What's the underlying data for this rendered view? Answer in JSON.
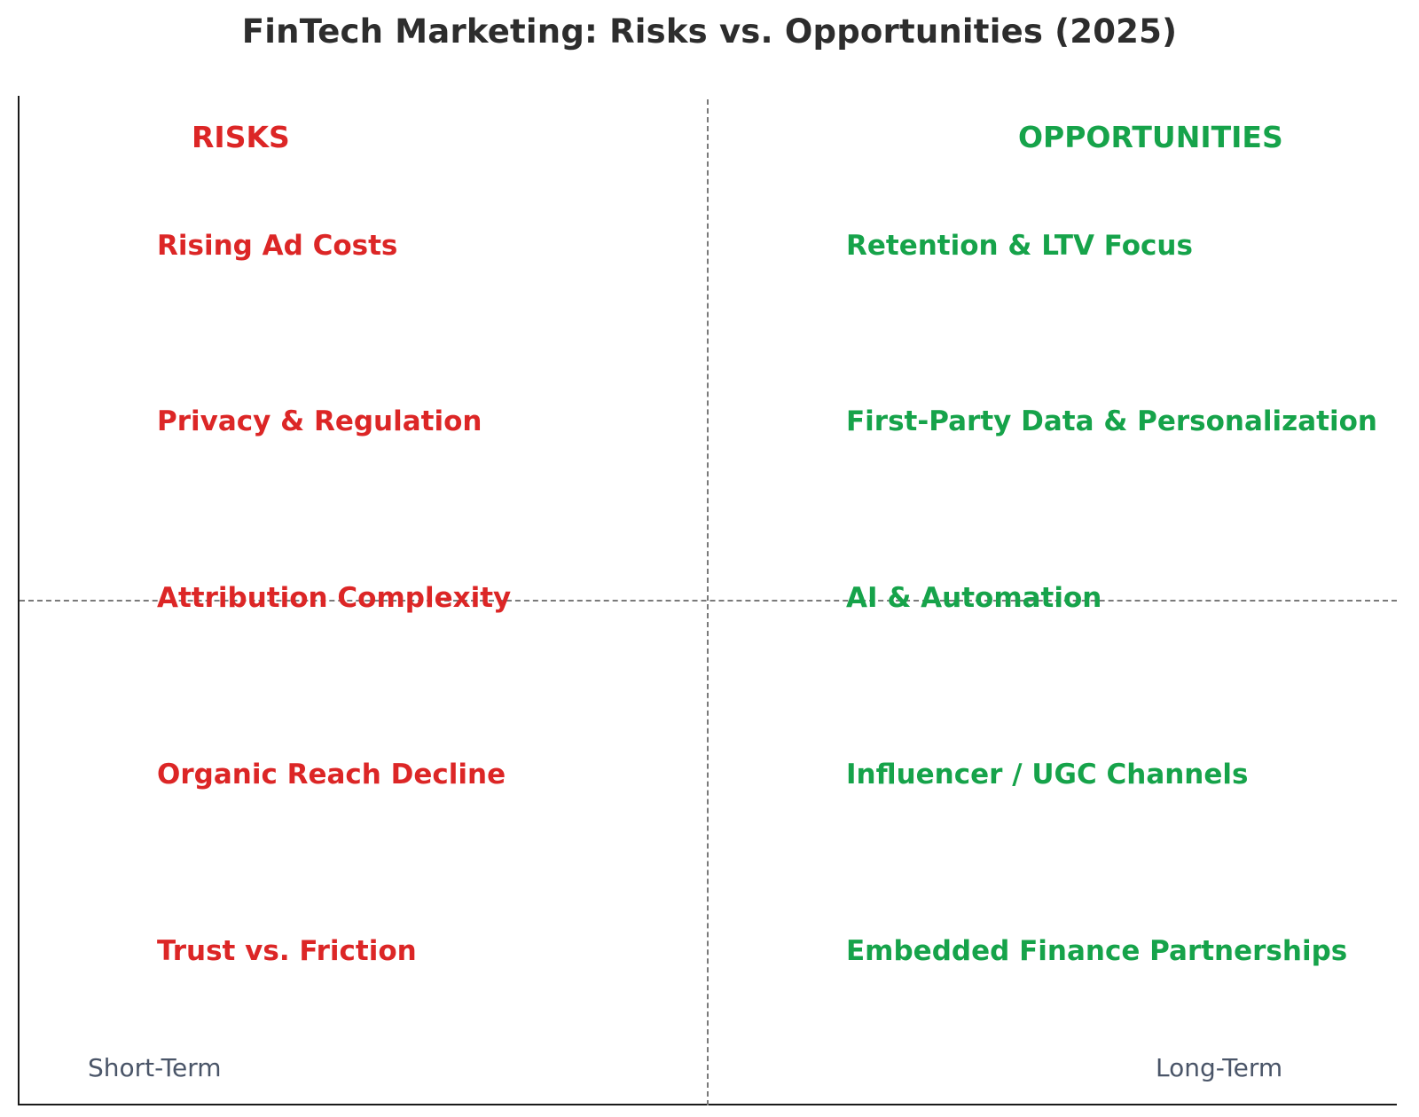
{
  "title": "FinTech Marketing: Risks vs. Opportunities (2025)",
  "colors": {
    "risk": "#dc2626",
    "opportunity": "#16a34a",
    "axis_label": "#4a5568",
    "title": "#2d2d2d",
    "divider": "#7a7a7a"
  },
  "risks": {
    "heading": "RISKS",
    "items": [
      "Rising Ad Costs",
      "Privacy & Regulation",
      "Attribution Complexity",
      "Organic Reach Decline",
      "Trust vs. Friction"
    ]
  },
  "opportunities": {
    "heading": "OPPORTUNITIES",
    "items": [
      "Retention & LTV Focus",
      "First-Party Data & Personalization",
      "AI & Automation",
      "Influencer / UGC Channels",
      "Embedded Finance Partnerships"
    ]
  },
  "axis": {
    "left_label": "Short-Term",
    "right_label": "Long-Term"
  }
}
